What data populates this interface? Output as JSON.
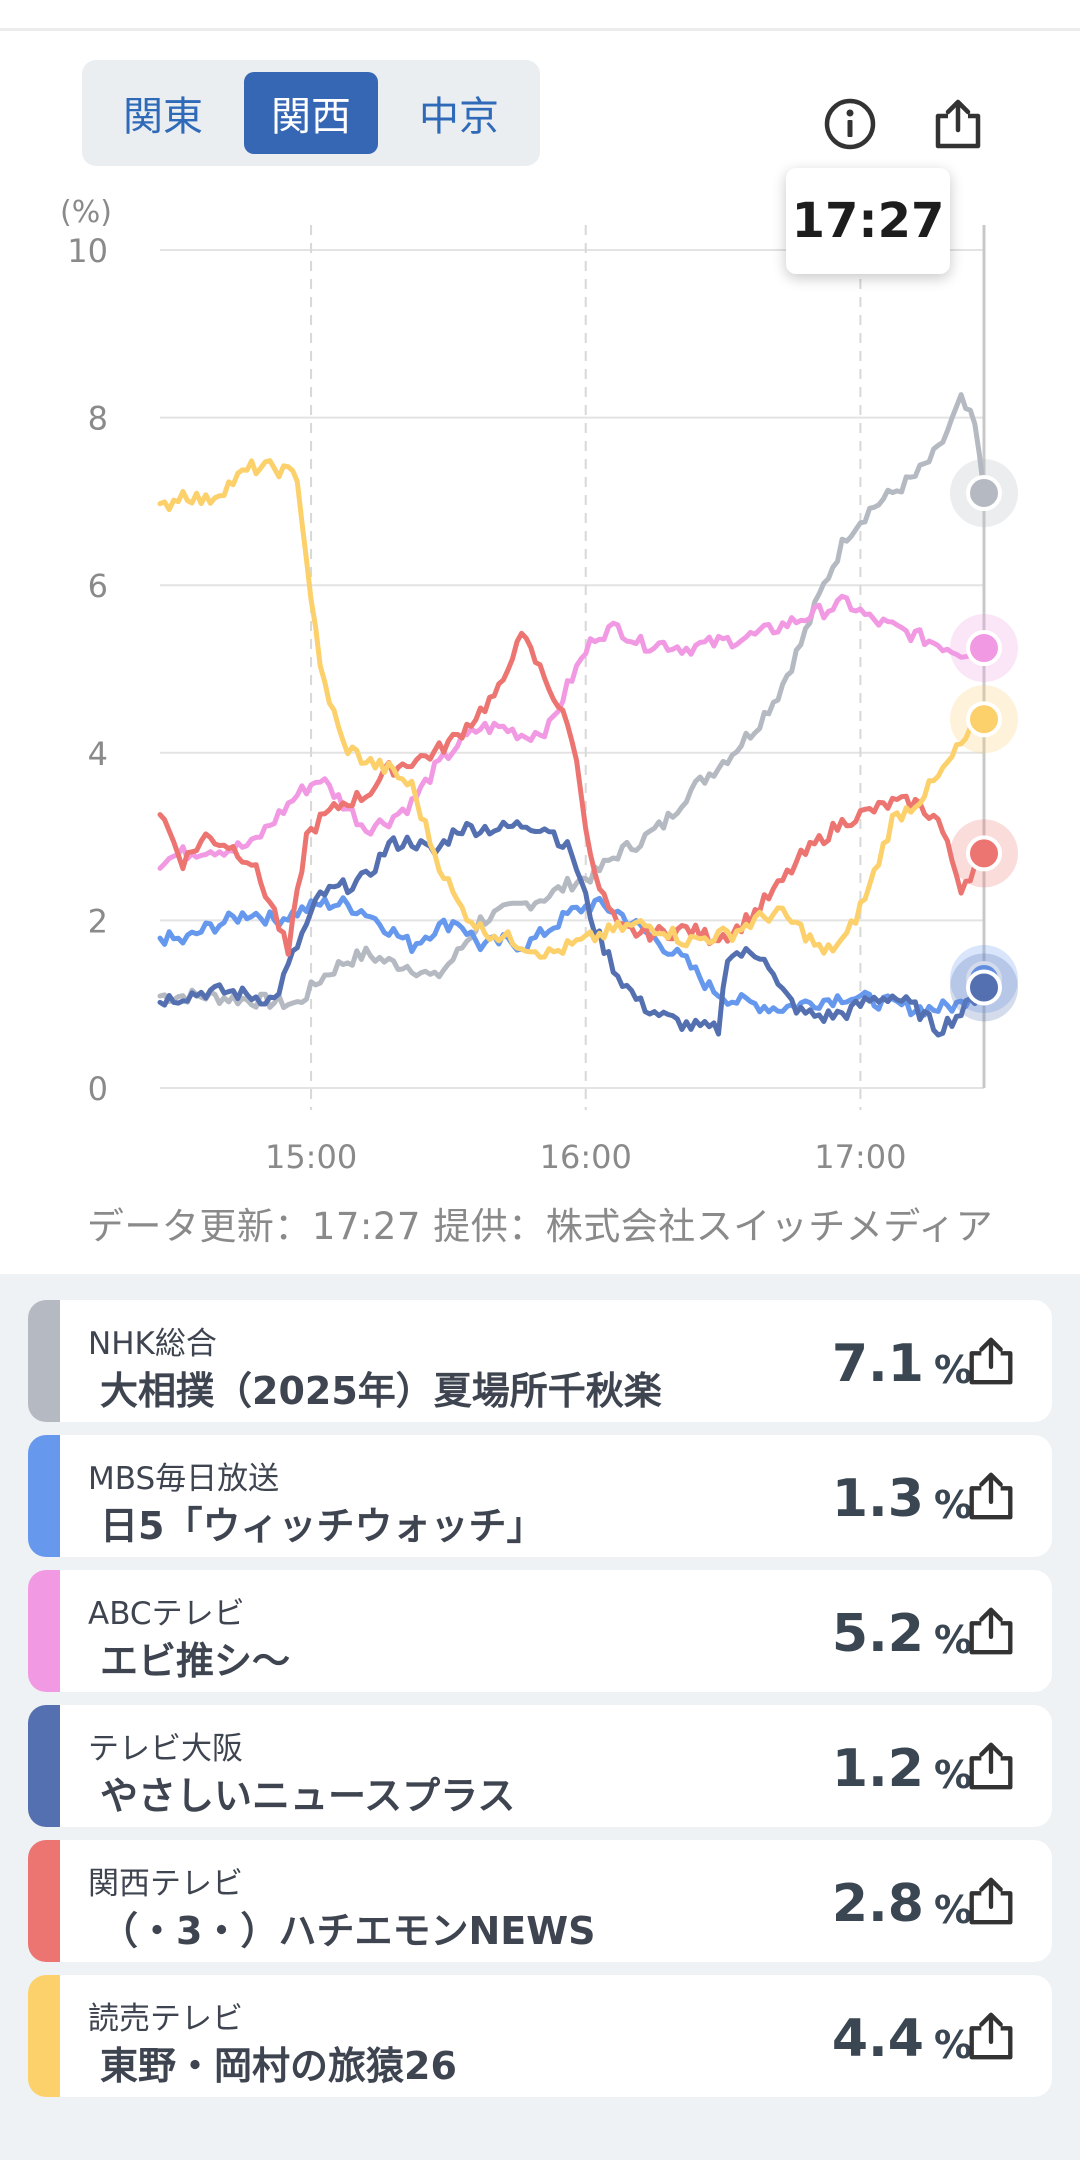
{
  "region_tabs": [
    {
      "label": "関東",
      "active": false
    },
    {
      "label": "関西",
      "active": true
    },
    {
      "label": "中京",
      "active": false
    }
  ],
  "header_icons": [
    "info-icon",
    "share-icon"
  ],
  "tooltip_time": "17:27",
  "chart_data": {
    "type": "line",
    "y_unit_label": "(%)",
    "y_ticks": [
      "10",
      "8",
      "6",
      "4",
      "2",
      "0"
    ],
    "x_ticks": [
      "15:00",
      "16:00",
      "17:00"
    ],
    "ylim": [
      0,
      10
    ],
    "x_range_minutes": [
      "14:27",
      "17:27"
    ],
    "grid": true,
    "current_time": "17:27",
    "series": [
      {
        "name": "NHK総合",
        "color": "#b5b9c1",
        "points": [
          [
            0,
            1.1
          ],
          [
            10,
            1.1
          ],
          [
            20,
            1.05
          ],
          [
            30,
            1.0
          ],
          [
            35,
            1.3
          ],
          [
            40,
            1.5
          ],
          [
            45,
            1.6
          ],
          [
            50,
            1.5
          ],
          [
            55,
            1.45
          ],
          [
            60,
            1.3
          ],
          [
            65,
            1.6
          ],
          [
            70,
            2.0
          ],
          [
            75,
            2.1
          ],
          [
            80,
            2.2
          ],
          [
            85,
            2.3
          ],
          [
            90,
            2.45
          ],
          [
            95,
            2.55
          ],
          [
            100,
            2.8
          ],
          [
            105,
            2.95
          ],
          [
            110,
            3.15
          ],
          [
            115,
            3.5
          ],
          [
            120,
            3.75
          ],
          [
            125,
            4.0
          ],
          [
            130,
            4.3
          ],
          [
            135,
            4.7
          ],
          [
            140,
            5.3
          ],
          [
            145,
            6.0
          ],
          [
            150,
            6.6
          ],
          [
            155,
            6.9
          ],
          [
            160,
            7.1
          ],
          [
            165,
            7.3
          ],
          [
            170,
            7.6
          ],
          [
            175,
            8.2
          ],
          [
            178,
            7.9
          ],
          [
            180,
            7.1
          ]
        ]
      },
      {
        "name": "MBS毎日放送",
        "color": "#6699ee",
        "points": [
          [
            0,
            1.8
          ],
          [
            5,
            1.75
          ],
          [
            10,
            1.9
          ],
          [
            15,
            2.0
          ],
          [
            20,
            2.1
          ],
          [
            25,
            2.0
          ],
          [
            30,
            2.1
          ],
          [
            35,
            2.2
          ],
          [
            40,
            2.2
          ],
          [
            45,
            2.1
          ],
          [
            50,
            1.9
          ],
          [
            55,
            1.7
          ],
          [
            60,
            1.9
          ],
          [
            65,
            2.0
          ],
          [
            70,
            1.7
          ],
          [
            75,
            1.75
          ],
          [
            80,
            1.7
          ],
          [
            85,
            1.9
          ],
          [
            90,
            2.1
          ],
          [
            95,
            2.2
          ],
          [
            100,
            2.1
          ],
          [
            105,
            1.9
          ],
          [
            110,
            1.7
          ],
          [
            115,
            1.5
          ],
          [
            120,
            1.2
          ],
          [
            125,
            1.05
          ],
          [
            130,
            1.0
          ],
          [
            135,
            0.95
          ],
          [
            140,
            1.0
          ],
          [
            145,
            1.05
          ],
          [
            150,
            1.1
          ],
          [
            155,
            1.05
          ],
          [
            160,
            1.0
          ],
          [
            165,
            0.95
          ],
          [
            170,
            0.95
          ],
          [
            175,
            1.0
          ],
          [
            180,
            1.3
          ]
        ]
      },
      {
        "name": "ABCテレビ",
        "color": "#f19ae3",
        "points": [
          [
            0,
            2.7
          ],
          [
            5,
            2.8
          ],
          [
            10,
            2.85
          ],
          [
            15,
            2.85
          ],
          [
            20,
            2.9
          ],
          [
            25,
            3.2
          ],
          [
            30,
            3.5
          ],
          [
            35,
            3.7
          ],
          [
            40,
            3.4
          ],
          [
            45,
            3.1
          ],
          [
            50,
            3.2
          ],
          [
            55,
            3.4
          ],
          [
            60,
            3.8
          ],
          [
            65,
            4.1
          ],
          [
            70,
            4.3
          ],
          [
            75,
            4.3
          ],
          [
            80,
            4.2
          ],
          [
            85,
            4.3
          ],
          [
            90,
            4.9
          ],
          [
            95,
            5.4
          ],
          [
            100,
            5.5
          ],
          [
            105,
            5.3
          ],
          [
            110,
            5.3
          ],
          [
            115,
            5.25
          ],
          [
            120,
            5.3
          ],
          [
            125,
            5.35
          ],
          [
            130,
            5.4
          ],
          [
            135,
            5.5
          ],
          [
            140,
            5.6
          ],
          [
            145,
            5.7
          ],
          [
            150,
            5.8
          ],
          [
            155,
            5.6
          ],
          [
            160,
            5.5
          ],
          [
            165,
            5.4
          ],
          [
            170,
            5.3
          ],
          [
            175,
            5.2
          ],
          [
            180,
            5.25
          ]
        ]
      },
      {
        "name": "テレビ大阪",
        "color": "#5470b0",
        "points": [
          [
            0,
            1.05
          ],
          [
            5,
            1.1
          ],
          [
            10,
            1.15
          ],
          [
            15,
            1.15
          ],
          [
            20,
            1.1
          ],
          [
            25,
            1.05
          ],
          [
            30,
            1.7
          ],
          [
            35,
            2.3
          ],
          [
            40,
            2.4
          ],
          [
            45,
            2.5
          ],
          [
            50,
            2.9
          ],
          [
            55,
            2.95
          ],
          [
            60,
            2.8
          ],
          [
            65,
            3.1
          ],
          [
            70,
            3.1
          ],
          [
            75,
            3.1
          ],
          [
            80,
            3.15
          ],
          [
            85,
            3.1
          ],
          [
            90,
            2.8
          ],
          [
            95,
            1.9
          ],
          [
            100,
            1.35
          ],
          [
            105,
            1.0
          ],
          [
            110,
            0.85
          ],
          [
            115,
            0.75
          ],
          [
            120,
            0.7
          ],
          [
            122,
            0.7
          ],
          [
            124,
            1.6
          ],
          [
            128,
            1.6
          ],
          [
            132,
            1.6
          ],
          [
            135,
            1.2
          ],
          [
            140,
            0.9
          ],
          [
            145,
            0.85
          ],
          [
            150,
            0.9
          ],
          [
            155,
            1.05
          ],
          [
            160,
            1.1
          ],
          [
            165,
            0.95
          ],
          [
            170,
            0.7
          ],
          [
            175,
            0.9
          ],
          [
            180,
            1.2
          ]
        ]
      },
      {
        "name": "関西テレビ",
        "color": "#ec7571",
        "points": [
          [
            0,
            3.3
          ],
          [
            5,
            2.7
          ],
          [
            10,
            3.0
          ],
          [
            15,
            2.9
          ],
          [
            20,
            2.7
          ],
          [
            25,
            2.1
          ],
          [
            28,
            1.6
          ],
          [
            32,
            3.0
          ],
          [
            35,
            3.2
          ],
          [
            40,
            3.4
          ],
          [
            45,
            3.5
          ],
          [
            50,
            3.8
          ],
          [
            55,
            3.9
          ],
          [
            60,
            4.0
          ],
          [
            65,
            4.2
          ],
          [
            70,
            4.5
          ],
          [
            75,
            4.8
          ],
          [
            78,
            5.4
          ],
          [
            80,
            5.3
          ],
          [
            85,
            4.8
          ],
          [
            90,
            4.2
          ],
          [
            95,
            2.5
          ],
          [
            100,
            1.9
          ],
          [
            105,
            1.85
          ],
          [
            110,
            1.85
          ],
          [
            115,
            1.9
          ],
          [
            120,
            1.8
          ],
          [
            125,
            1.85
          ],
          [
            130,
            2.1
          ],
          [
            135,
            2.4
          ],
          [
            140,
            2.75
          ],
          [
            145,
            3.0
          ],
          [
            150,
            3.2
          ],
          [
            155,
            3.3
          ],
          [
            160,
            3.4
          ],
          [
            165,
            3.4
          ],
          [
            170,
            3.2
          ],
          [
            175,
            2.4
          ],
          [
            180,
            2.8
          ]
        ]
      },
      {
        "name": "読売テレビ",
        "color": "#fcd06a",
        "points": [
          [
            0,
            6.9
          ],
          [
            5,
            7.1
          ],
          [
            10,
            7.0
          ],
          [
            15,
            7.2
          ],
          [
            20,
            7.4
          ],
          [
            25,
            7.4
          ],
          [
            30,
            7.3
          ],
          [
            32,
            6.3
          ],
          [
            35,
            5.0
          ],
          [
            40,
            4.1
          ],
          [
            45,
            3.9
          ],
          [
            50,
            3.8
          ],
          [
            55,
            3.6
          ],
          [
            60,
            2.8
          ],
          [
            65,
            2.2
          ],
          [
            70,
            1.9
          ],
          [
            75,
            1.8
          ],
          [
            80,
            1.7
          ],
          [
            85,
            1.6
          ],
          [
            90,
            1.7
          ],
          [
            95,
            1.8
          ],
          [
            100,
            1.9
          ],
          [
            105,
            1.95
          ],
          [
            110,
            1.9
          ],
          [
            115,
            1.75
          ],
          [
            120,
            1.8
          ],
          [
            125,
            1.85
          ],
          [
            130,
            2.0
          ],
          [
            135,
            2.1
          ],
          [
            140,
            1.9
          ],
          [
            145,
            1.6
          ],
          [
            150,
            1.8
          ],
          [
            155,
            2.4
          ],
          [
            160,
            3.2
          ],
          [
            165,
            3.4
          ],
          [
            170,
            3.7
          ],
          [
            175,
            4.1
          ],
          [
            180,
            4.4
          ]
        ]
      }
    ]
  },
  "data_source_text": "データ更新：17:27  提供：株式会社スイッチメディア",
  "channels": [
    {
      "channel": "NHK総合",
      "program": "大相撲（2025年）夏場所千秋楽",
      "rating": "7.1",
      "unit": "%",
      "color": "#b5b9c1"
    },
    {
      "channel": "MBS毎日放送",
      "program": "日5「ウィッチウォッチ」",
      "rating": "1.3",
      "unit": "%",
      "color": "#6699ee"
    },
    {
      "channel": "ABCテレビ",
      "program": "エビ推シ〜",
      "rating": "5.2",
      "unit": "%",
      "color": "#f19ae3"
    },
    {
      "channel": "テレビ大阪",
      "program": "やさしいニュースプラス",
      "rating": "1.2",
      "unit": "%",
      "color": "#5470b0"
    },
    {
      "channel": "関西テレビ",
      "program": "（・3・）ハチエモンNEWS",
      "rating": "2.8",
      "unit": "%",
      "color": "#ec7571"
    },
    {
      "channel": "読売テレビ",
      "program": "東野・岡村の旅猿26",
      "rating": "4.4",
      "unit": "%",
      "color": "#fcd06a"
    }
  ]
}
